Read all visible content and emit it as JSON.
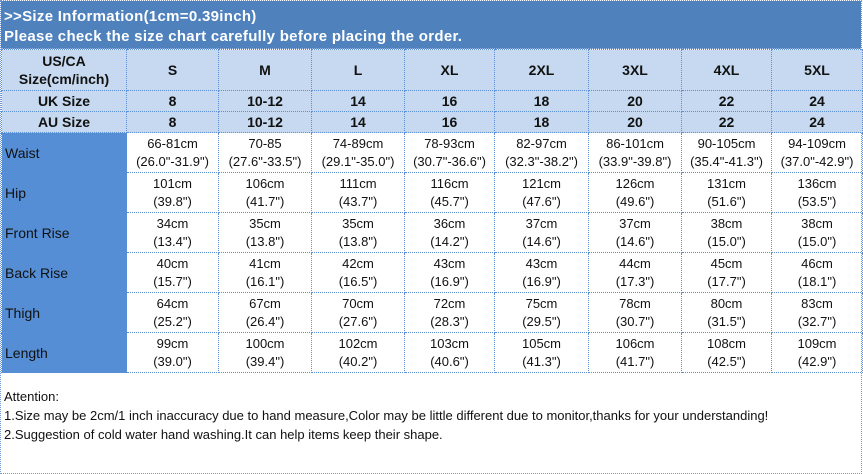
{
  "title": {
    "line1": ">>Size Information(1cm=0.39inch)",
    "line2": "Please check the size chart carefully before placing the order."
  },
  "colors": {
    "title_bg": "#4f81bd",
    "header_bg": "#c6d9f0",
    "label_col_bg": "#558ed5"
  },
  "header": {
    "label": "US/CA Size(cm/inch)",
    "sizes": [
      "S",
      "M",
      "L",
      "XL",
      "2XL",
      "3XL",
      "4XL",
      "5XL"
    ]
  },
  "uk": {
    "label": "UK Size",
    "values": [
      "8",
      "10-12",
      "14",
      "16",
      "18",
      "20",
      "22",
      "24"
    ]
  },
  "au": {
    "label": "AU Size",
    "values": [
      "8",
      "10-12",
      "14",
      "16",
      "18",
      "20",
      "22",
      "24"
    ]
  },
  "rows": [
    {
      "label": "Waist",
      "cm": [
        "66-81cm",
        "70-85",
        "74-89cm",
        "78-93cm",
        "82-97cm",
        "86-101cm",
        "90-105cm",
        "94-109cm"
      ],
      "inch": [
        "(26.0\"-31.9\")",
        "(27.6\"-33.5\")",
        "(29.1\"-35.0\")",
        "(30.7\"-36.6\")",
        "(32.3\"-38.2\")",
        "(33.9\"-39.8\")",
        "(35.4\"-41.3\")",
        "(37.0\"-42.9\")"
      ]
    },
    {
      "label": "Hip",
      "cm": [
        "101cm",
        "106cm",
        "111cm",
        "116cm",
        "121cm",
        "126cm",
        "131cm",
        "136cm"
      ],
      "inch": [
        "(39.8\")",
        "(41.7\")",
        "(43.7\")",
        "(45.7\")",
        "(47.6\")",
        "(49.6\")",
        "(51.6\")",
        "(53.5\")"
      ]
    },
    {
      "label": "Front Rise",
      "cm": [
        "34cm",
        "35cm",
        "35cm",
        "36cm",
        "37cm",
        "37cm",
        "38cm",
        "38cm"
      ],
      "inch": [
        "(13.4\")",
        "(13.8\")",
        "(13.8\")",
        "(14.2\")",
        "(14.6\")",
        "(14.6\")",
        "(15.0\")",
        "(15.0\")"
      ]
    },
    {
      "label": "Back Rise",
      "cm": [
        "40cm",
        "41cm",
        "42cm",
        "43cm",
        "43cm",
        "44cm",
        "45cm",
        "46cm"
      ],
      "inch": [
        "(15.7\")",
        "(16.1\")",
        "(16.5\")",
        "(16.9\")",
        "(16.9\")",
        "(17.3\")",
        "(17.7\")",
        "(18.1\")"
      ]
    },
    {
      "label": "Thigh",
      "cm": [
        "64cm",
        "67cm",
        "70cm",
        "72cm",
        "75cm",
        "78cm",
        "80cm",
        "83cm"
      ],
      "inch": [
        "(25.2\")",
        "(26.4\")",
        "(27.6\")",
        "(28.3\")",
        "(29.5\")",
        "(30.7\")",
        "(31.5\")",
        "(32.7\")"
      ]
    },
    {
      "label": "Length",
      "cm": [
        "99cm",
        "100cm",
        "102cm",
        "103cm",
        "105cm",
        "106cm",
        "108cm",
        "109cm"
      ],
      "inch": [
        "(39.0\")",
        "(39.4\")",
        "(40.2\")",
        "(40.6\")",
        "(41.3\")",
        "(41.7\")",
        "(42.5\")",
        "(42.9\")"
      ]
    }
  ],
  "attention": {
    "heading": "Attention:",
    "note1": "1.Size may be 2cm/1 inch inaccuracy due to hand measure,Color may be little different due to monitor,thanks for your understanding!",
    "note2": "2.Suggestion of cold water hand washing.It can help items keep their shape."
  }
}
